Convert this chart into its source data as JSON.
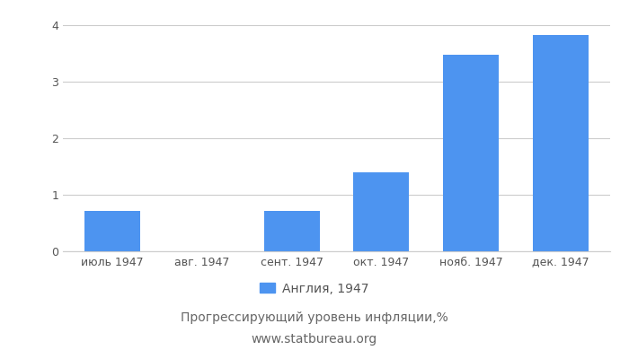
{
  "categories": [
    "июль 1947",
    "авг. 1947",
    "сент. 1947",
    "окт. 1947",
    "нояб. 1947",
    "дек. 1947"
  ],
  "values": [
    0.71,
    0.0,
    0.71,
    1.4,
    3.47,
    3.82
  ],
  "bar_color": "#4d94f0",
  "title": "Прогрессирующий уровень инфляции,%",
  "subtitle": "www.statbureau.org",
  "legend_label": "Англия, 1947",
  "ylim": [
    0,
    4.0
  ],
  "yticks": [
    0,
    1,
    2,
    3,
    4
  ],
  "background_color": "#ffffff",
  "grid_color": "#cccccc",
  "title_color": "#666666",
  "title_fontsize": 10,
  "legend_fontsize": 10,
  "tick_fontsize": 9,
  "bar_width": 0.62,
  "figsize": [
    7.0,
    4.0
  ],
  "dpi": 100
}
